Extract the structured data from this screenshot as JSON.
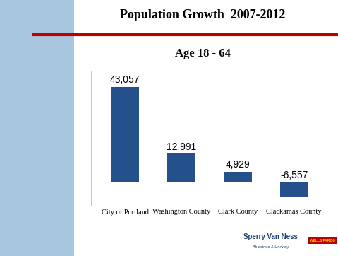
{
  "chart_data": {
    "type": "bar",
    "title": "Population Growth  2007-2012",
    "subtitle": "Age 18 - 64",
    "categories": [
      "City of Portland",
      "Washington County",
      "Clark County",
      "Clackamas County"
    ],
    "values": [
      43057,
      12991,
      4929,
      -6557
    ],
    "value_labels": [
      "43,057",
      "12,991",
      "4,929",
      "-6,557"
    ],
    "data_labels": true,
    "color": "#24508c",
    "ylim": [
      -10000,
      50000
    ],
    "yticks": [],
    "tick_labels": "x",
    "grid": false,
    "annotations": [
      "Sperry Van Ness",
      "Bluestone & Hockley",
      "WELLS FARGO"
    ]
  }
}
